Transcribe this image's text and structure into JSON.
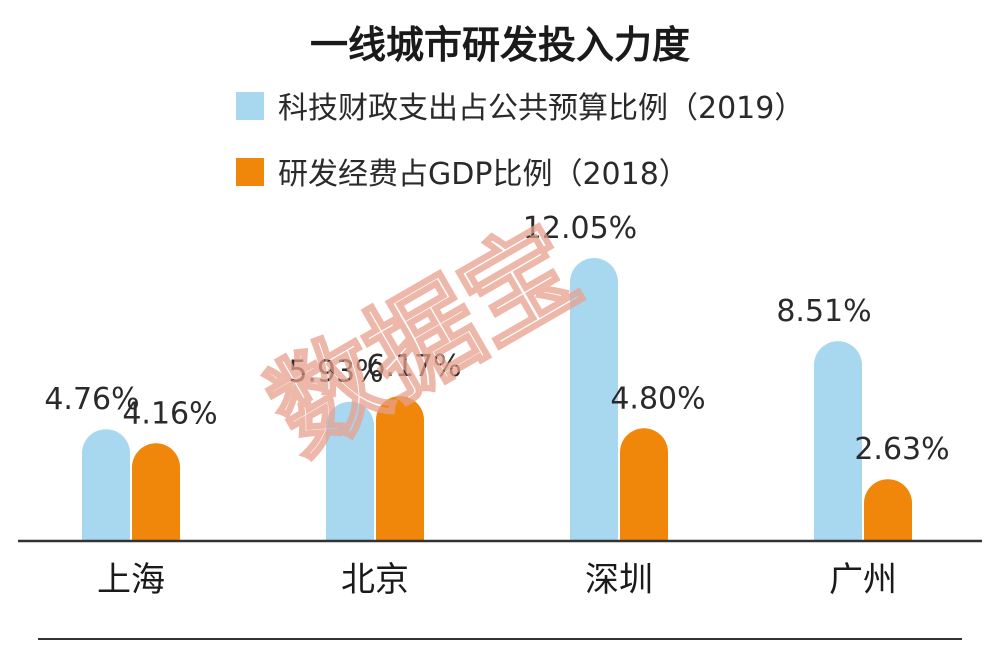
{
  "chart_data": {
    "type": "bar",
    "title": "一线城市研发投入力度",
    "categories": [
      "上海",
      "北京",
      "深圳",
      "广州"
    ],
    "series": [
      {
        "name": "科技财政支出占公共预算比例（2019）",
        "color": "#a8d8f0",
        "values": [
          4.76,
          5.93,
          12.05,
          8.51
        ],
        "labels": [
          "4.76%",
          "5.93%",
          "12.05%",
          "8.51%"
        ]
      },
      {
        "name": "研发经费占GDP比例（2018）",
        "color": "#f0870a",
        "values": [
          4.16,
          6.17,
          4.8,
          2.63
        ],
        "labels": [
          "4.16%",
          "6.17%",
          "4.80%",
          "2.63%"
        ]
      }
    ],
    "ylim": [
      0,
      12.05
    ],
    "grid": false,
    "legend_position": "top"
  },
  "watermark": "数据宝",
  "axis_color": "#333333"
}
